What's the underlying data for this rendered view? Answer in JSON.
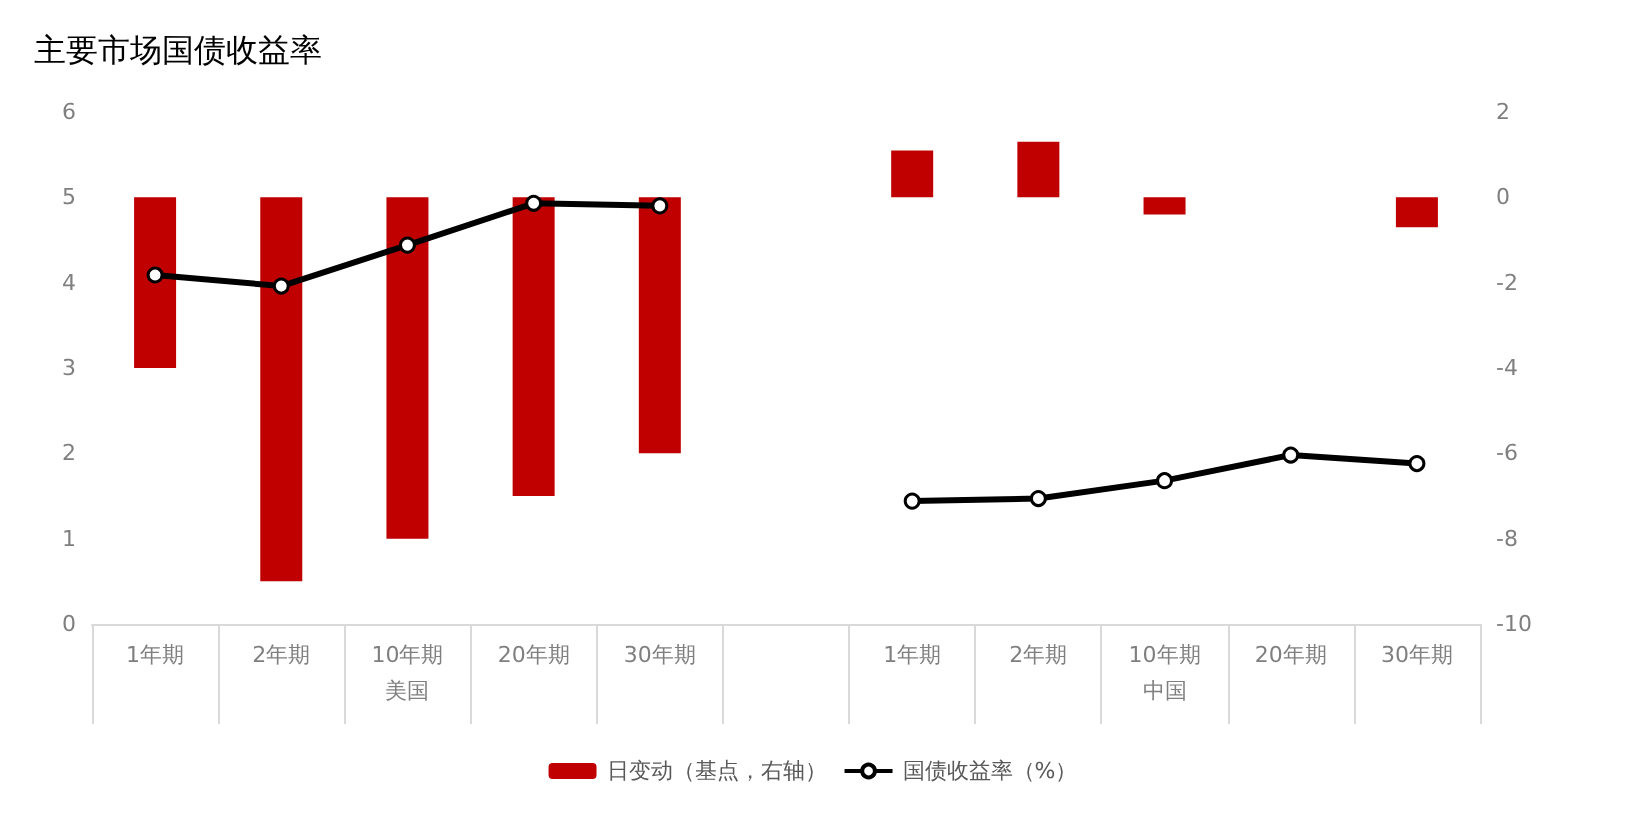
{
  "chart_data": {
    "type": "bar",
    "title": "主要市场国债收益率",
    "categories": [
      "1年期",
      "2年期",
      "10年期",
      "20年期",
      "30年期",
      null,
      "1年期",
      "2年期",
      "10年期",
      "20年期",
      "30年期"
    ],
    "series": [
      {
        "name": "日变动（基点，右轴）",
        "axis": "y2",
        "color": "#c00000",
        "values": [
          -4,
          -9,
          -8,
          -7,
          -6,
          null,
          1.1,
          1.3,
          -0.4,
          0,
          -0.7
        ]
      },
      {
        "name": "国债收益率（%）",
        "type": "line",
        "color": "#000000",
        "marker": "circle",
        "values": [
          4.09,
          3.96,
          4.44,
          4.93,
          4.9,
          null,
          1.44,
          1.47,
          1.68,
          1.98,
          1.88
        ]
      }
    ],
    "ylim": [
      0,
      6
    ],
    "yticks": [
      0,
      1,
      2,
      3,
      4,
      5,
      6
    ],
    "y2lim": [
      -10,
      2
    ],
    "y2ticks": [
      -10,
      -8,
      -6,
      -4,
      -2,
      0,
      2
    ],
    "annotations": [
      "美国",
      "中国"
    ],
    "grid": false,
    "legend": "bottom"
  }
}
